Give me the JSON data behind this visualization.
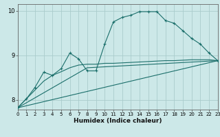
{
  "xlabel": "Humidex (Indice chaleur)",
  "bg_color": "#cce8e8",
  "grid_color": "#aacccc",
  "line_color": "#1a6e6a",
  "xlim": [
    0,
    23
  ],
  "ylim": [
    7.78,
    10.15
  ],
  "xticks": [
    0,
    1,
    2,
    3,
    4,
    5,
    6,
    7,
    8,
    9,
    10,
    11,
    12,
    13,
    14,
    15,
    16,
    17,
    18,
    19,
    20,
    21,
    22,
    23
  ],
  "yticks": [
    8,
    9,
    10
  ],
  "line1_x": [
    0,
    1,
    2,
    3,
    4,
    5,
    6,
    7,
    8,
    9,
    10,
    11,
    12,
    13,
    14,
    15,
    16,
    17,
    18,
    19,
    20,
    21,
    22,
    23
  ],
  "line1_y": [
    7.82,
    8.02,
    8.28,
    8.62,
    8.55,
    8.7,
    9.05,
    8.92,
    8.65,
    8.65,
    9.25,
    9.75,
    9.85,
    9.9,
    9.98,
    9.98,
    9.98,
    9.78,
    9.72,
    9.55,
    9.38,
    9.25,
    9.05,
    8.88
  ],
  "line2_x": [
    0,
    1,
    2,
    3,
    4,
    5,
    6,
    7,
    8,
    9,
    10,
    11,
    12,
    13,
    14,
    15,
    16,
    17,
    18,
    19,
    20,
    21,
    22,
    23
  ],
  "line2_y": [
    7.82,
    8.02,
    8.22,
    8.42,
    8.55,
    8.63,
    8.72,
    8.78,
    8.8,
    8.8,
    8.82,
    8.82,
    8.83,
    8.84,
    8.85,
    8.86,
    8.87,
    8.88,
    8.88,
    8.89,
    8.9,
    8.9,
    8.9,
    8.88
  ],
  "line3_x": [
    0,
    23
  ],
  "line3_y": [
    7.82,
    8.88
  ],
  "line4_x": [
    0,
    8,
    23
  ],
  "line4_y": [
    7.82,
    8.72,
    8.88
  ]
}
